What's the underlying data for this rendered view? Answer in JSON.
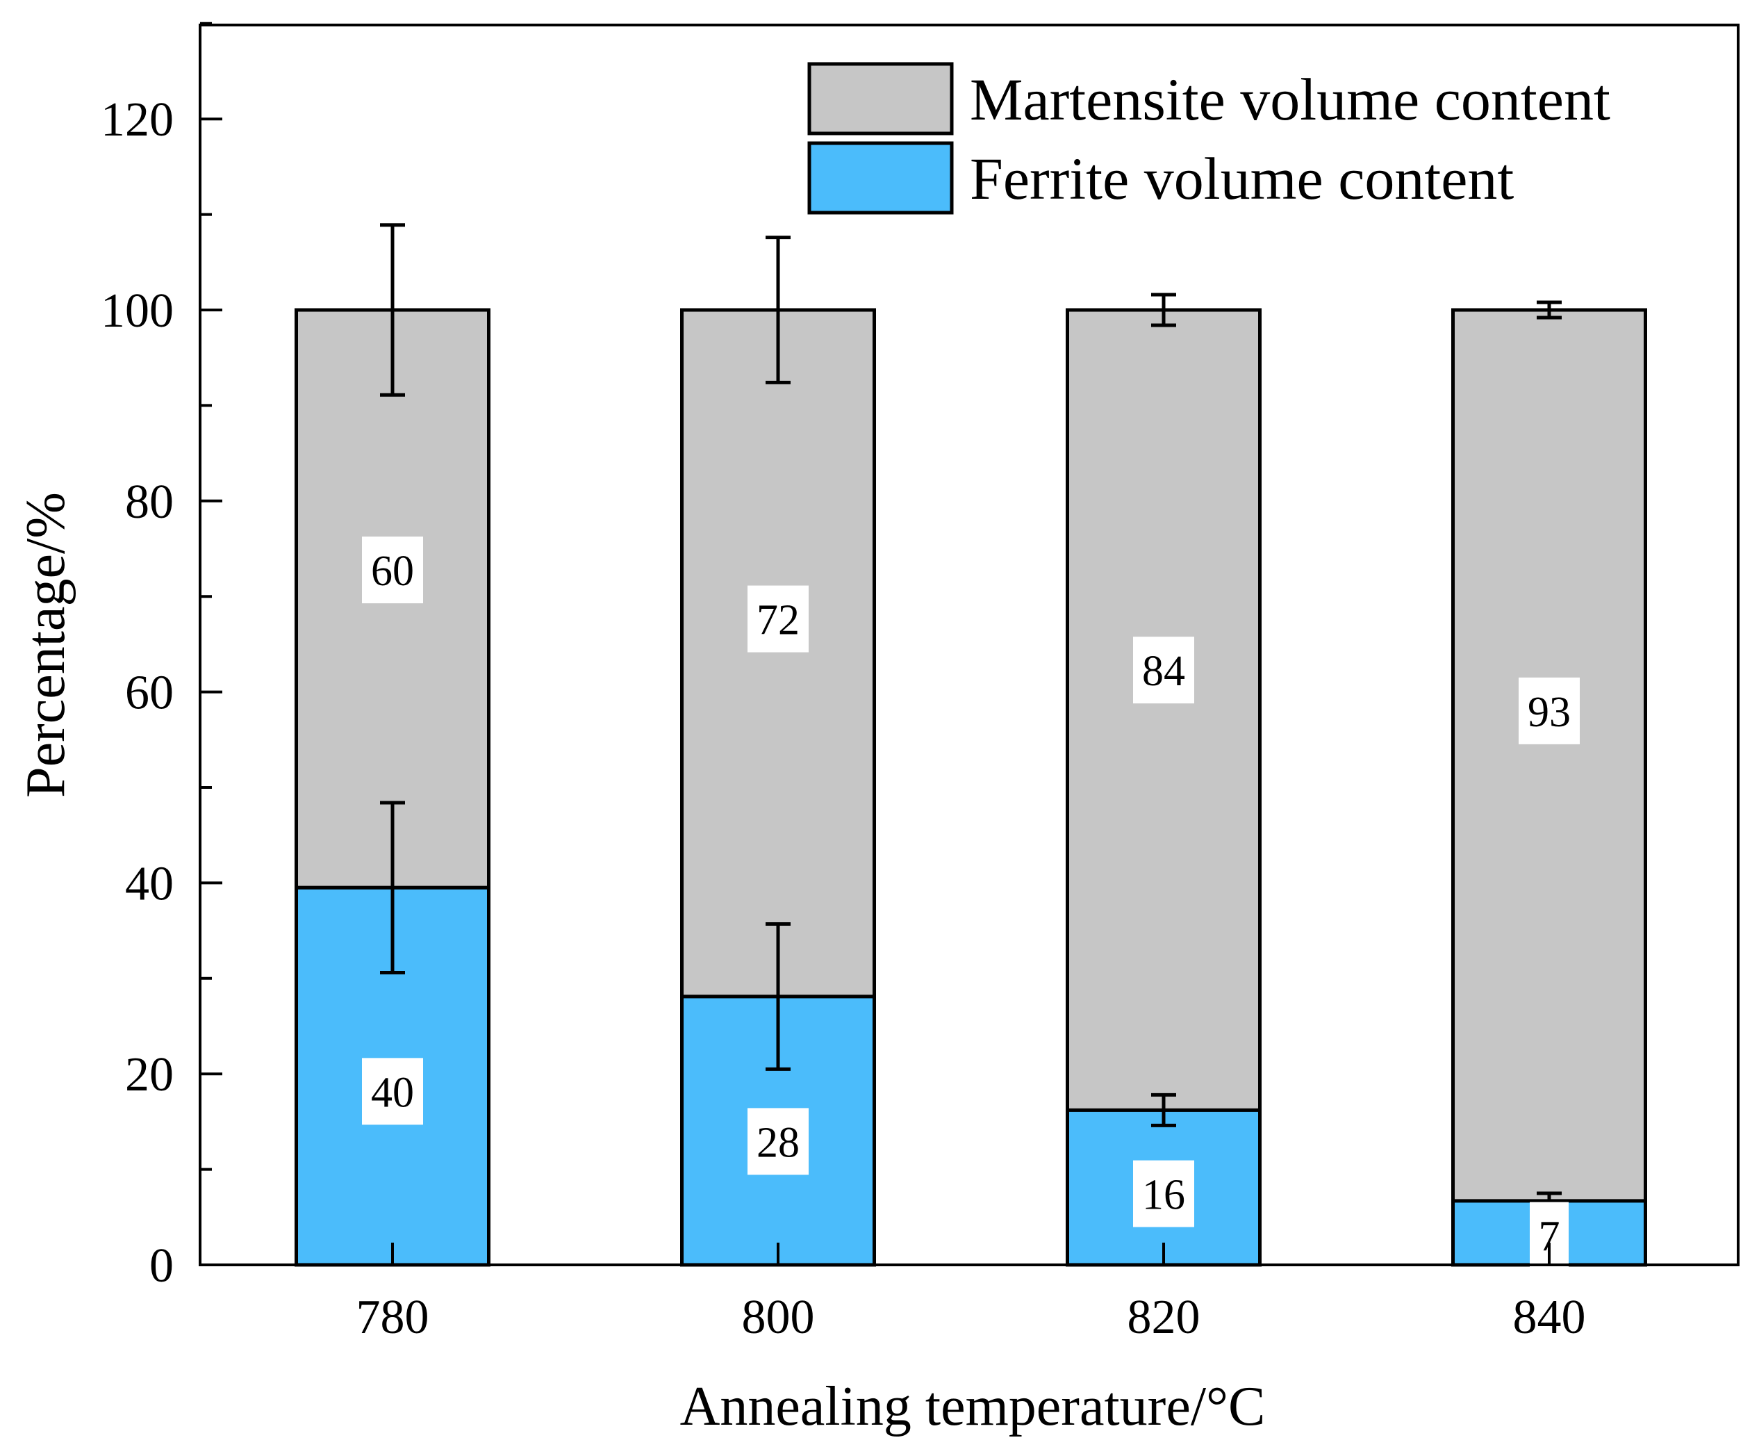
{
  "chart_data": {
    "type": "bar",
    "stacked": true,
    "title": "",
    "xlabel": "Annealing temperature/°C",
    "ylabel": "Percentage/%",
    "ylim": [
      0,
      130
    ],
    "yticks": [
      0,
      20,
      40,
      60,
      80,
      100,
      120
    ],
    "categories": [
      "780",
      "800",
      "820",
      "840"
    ],
    "series": [
      {
        "name": "Ferrite volume content",
        "color": "#4bbcfb",
        "values": [
          40,
          28,
          16,
          7
        ],
        "plotted_values": [
          39.5,
          28.1,
          16.2,
          6.7
        ],
        "error": [
          8.9,
          7.6,
          1.6,
          0.8
        ],
        "labels": [
          "40",
          "28",
          "16",
          "7"
        ]
      },
      {
        "name": "Martensite volume content",
        "color": "#c6c6c6",
        "values": [
          60,
          72,
          84,
          93
        ],
        "plotted_values": [
          60.5,
          71.9,
          83.8,
          93.3
        ],
        "error": [
          8.9,
          7.6,
          1.6,
          0.8
        ],
        "labels": [
          "60",
          "72",
          "84",
          "93"
        ]
      }
    ],
    "legend": {
      "position": "top-right"
    },
    "grid": false
  }
}
